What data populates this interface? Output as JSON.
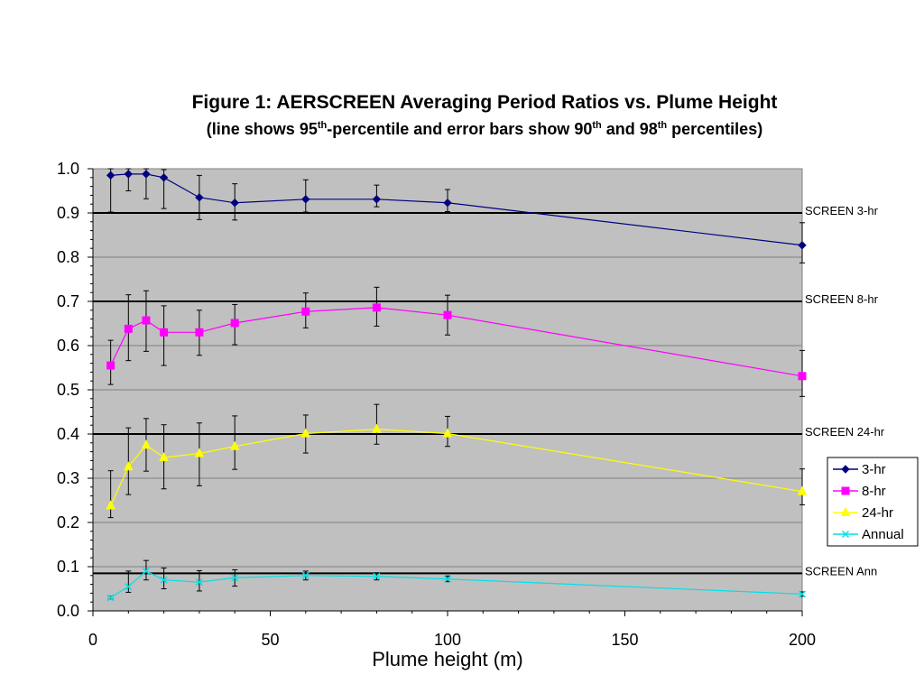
{
  "chart_data": {
    "type": "line",
    "title": "Figure 1:  AERSCREEN Averaging Period Ratios vs. Plume Height",
    "subtitle": {
      "part1": "(line shows 95",
      "sup1": "th",
      "part2": "-percentile and error bars show 90",
      "sup2": "th",
      "part3": " and 98",
      "sup3": "th",
      "part4": " percentiles)"
    },
    "xlabel": "Plume height (m)",
    "ylabel": "",
    "xlim": [
      0,
      200
    ],
    "ylim": [
      0,
      1.0
    ],
    "x_ticks": [
      0,
      50,
      100,
      150,
      200
    ],
    "x_tick_labels": [
      "0",
      "50",
      "100",
      "150",
      "200"
    ],
    "y_ticks": [
      0,
      0.1,
      0.2,
      0.3,
      0.4,
      0.5,
      0.6,
      0.7,
      0.8,
      0.9,
      1.0
    ],
    "y_tick_labels": [
      "0.0",
      "0.1",
      "0.2",
      "0.3",
      "0.4",
      "0.5",
      "0.6",
      "0.7",
      "0.8",
      "0.9",
      "1.0"
    ],
    "grid": true,
    "plot_background": "#c0c0c0",
    "legend_position": "right",
    "x": [
      5,
      10,
      15,
      20,
      30,
      40,
      60,
      80,
      100,
      200
    ],
    "series": [
      {
        "name": "3-hr",
        "color": "#000080",
        "marker": "diamond",
        "values": [
          0.985,
          0.988,
          0.988,
          0.98,
          0.935,
          0.923,
          0.931,
          0.931,
          0.923,
          0.827
        ],
        "err_low": [
          0.902,
          0.95,
          0.932,
          0.91,
          0.885,
          0.884,
          0.902,
          0.914,
          0.903,
          0.787
        ],
        "err_high": [
          1.0,
          1.0,
          1.0,
          0.998,
          0.985,
          0.966,
          0.975,
          0.963,
          0.953,
          0.878
        ]
      },
      {
        "name": "8-hr",
        "color": "#ff00ff",
        "marker": "square",
        "values": [
          0.555,
          0.638,
          0.657,
          0.63,
          0.63,
          0.651,
          0.677,
          0.686,
          0.669,
          0.531
        ],
        "err_low": [
          0.512,
          0.566,
          0.587,
          0.555,
          0.578,
          0.602,
          0.64,
          0.644,
          0.624,
          0.485
        ],
        "err_high": [
          0.612,
          0.715,
          0.724,
          0.69,
          0.68,
          0.693,
          0.719,
          0.732,
          0.714,
          0.589
        ]
      },
      {
        "name": "24-hr",
        "color": "#ffff00",
        "marker": "triangle",
        "values": [
          0.238,
          0.326,
          0.375,
          0.347,
          0.356,
          0.372,
          0.401,
          0.411,
          0.401,
          0.27
        ],
        "err_low": [
          0.211,
          0.263,
          0.316,
          0.276,
          0.283,
          0.32,
          0.357,
          0.377,
          0.372,
          0.24
        ],
        "err_high": [
          0.317,
          0.414,
          0.435,
          0.421,
          0.425,
          0.441,
          0.443,
          0.467,
          0.44,
          0.321
        ]
      },
      {
        "name": "Annual",
        "color": "#00e0e8",
        "marker": "x",
        "values": [
          0.03,
          0.055,
          0.09,
          0.07,
          0.065,
          0.075,
          0.08,
          0.078,
          0.072,
          0.038
        ],
        "err_low": [
          0.027,
          0.042,
          0.07,
          0.05,
          0.045,
          0.056,
          0.07,
          0.07,
          0.066,
          0.033
        ],
        "err_high": [
          0.033,
          0.09,
          0.114,
          0.097,
          0.091,
          0.093,
          0.09,
          0.086,
          0.079,
          0.043
        ]
      }
    ],
    "reference_lines": [
      {
        "label": "SCREEN 3-hr",
        "value": 0.9
      },
      {
        "label": "SCREEN 8-hr",
        "value": 0.7
      },
      {
        "label": "SCREEN 24-hr",
        "value": 0.4
      },
      {
        "label": "SCREEN Ann",
        "value": 0.085
      }
    ]
  }
}
